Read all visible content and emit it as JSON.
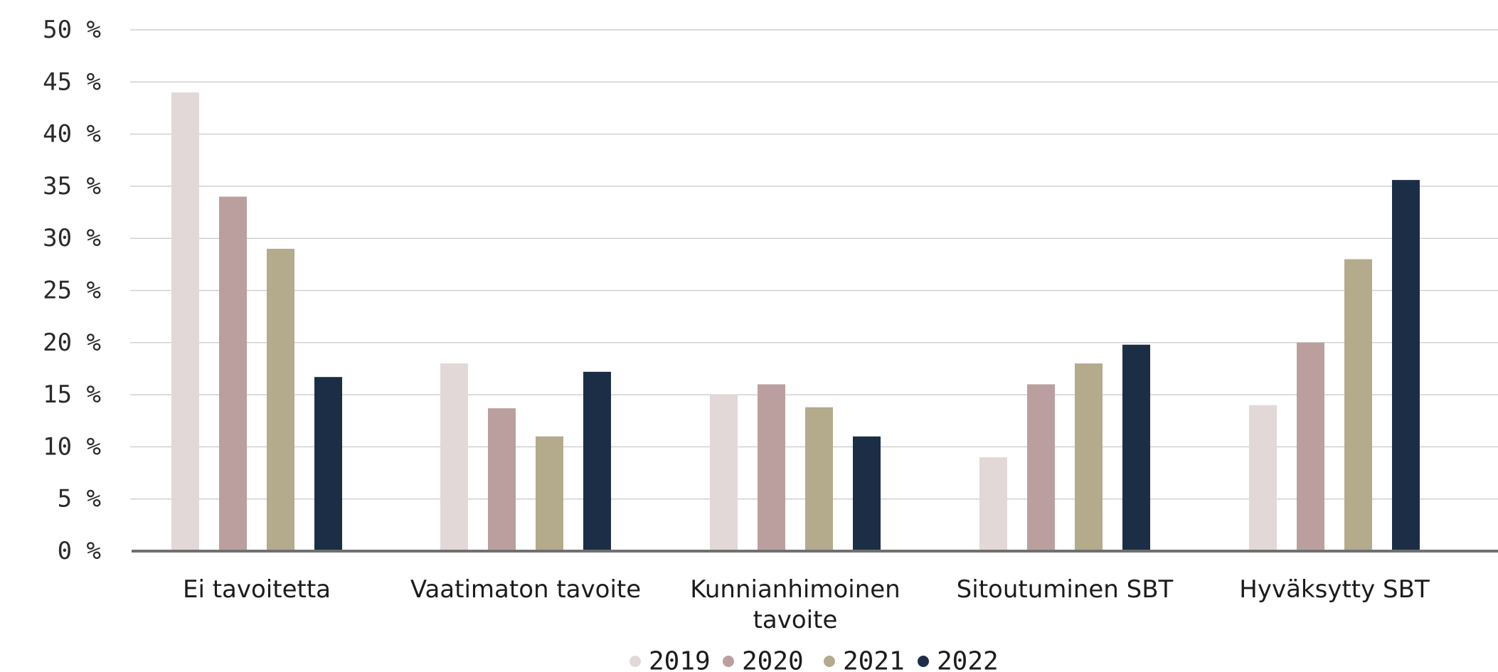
{
  "chart_data": {
    "type": "bar",
    "categories": [
      [
        "Ei tavoitetta"
      ],
      [
        "Vaatimaton tavoite"
      ],
      [
        "Kunnianhimoinen",
        "tavoite"
      ],
      [
        "Sitoutuminen SBT"
      ],
      [
        "Hyväksytty SBT"
      ]
    ],
    "series": [
      {
        "name": "2019",
        "color": "#e2d8d8",
        "values": [
          44,
          18,
          15,
          9,
          14
        ]
      },
      {
        "name": "2020",
        "color": "#bb9f9f",
        "values": [
          34,
          13.7,
          16,
          16,
          20
        ]
      },
      {
        "name": "2021",
        "color": "#b4aa8c",
        "values": [
          29,
          11,
          13.8,
          18,
          28
        ]
      },
      {
        "name": "2022",
        "color": "#1c2e46",
        "values": [
          16.7,
          17.2,
          11,
          19.8,
          35.6
        ]
      }
    ],
    "yticks": [
      "0 %",
      "5 %",
      "10 %",
      "15 %",
      "20 %",
      "25 %",
      "30 %",
      "35 %",
      "40 %",
      "45 %",
      "50 %"
    ],
    "ylim": [
      0,
      50
    ],
    "grid": true,
    "legend_position": "bottom-center",
    "colors": {
      "gridline": "#d0d0d0",
      "axis": "#707070"
    }
  }
}
